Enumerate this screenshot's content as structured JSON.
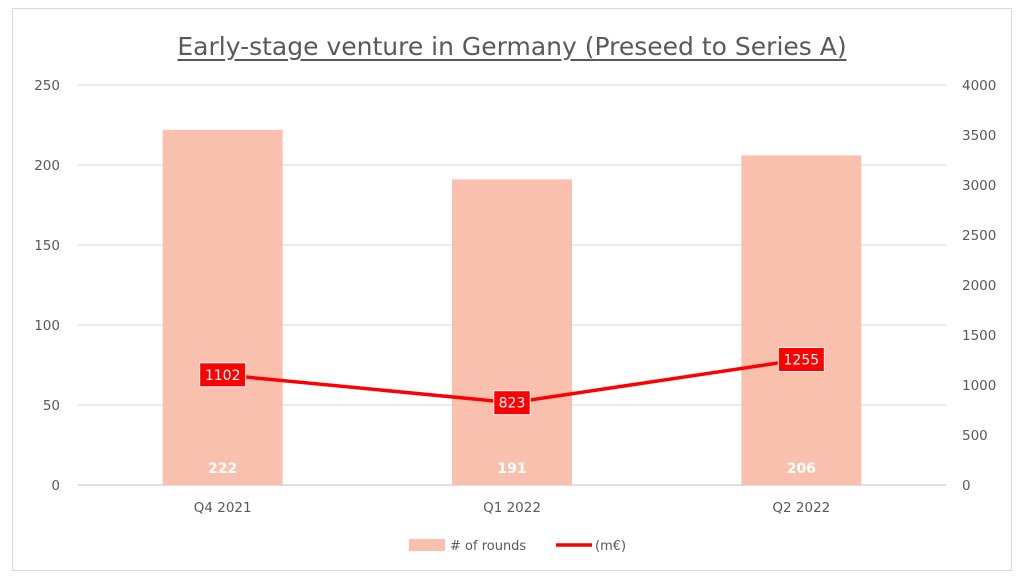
{
  "chart_data": {
    "type": "bar",
    "title": "Early-stage venture in Germany (Preseed to Series A)",
    "categories": [
      "Q4 2021",
      "Q1 2022",
      "Q2 2022"
    ],
    "series": [
      {
        "name": "# of rounds",
        "type": "bar",
        "axis": "left",
        "values": [
          222,
          191,
          206
        ],
        "color": "#f8c0ad",
        "data_labels": [
          "222",
          "191",
          "206"
        ]
      },
      {
        "name": "(m€)",
        "type": "line",
        "axis": "right",
        "values": [
          1102,
          823,
          1255
        ],
        "color": "#ff0000",
        "data_labels": [
          "1102",
          "823",
          "1255"
        ]
      }
    ],
    "y_left": {
      "min": 0,
      "max": 250,
      "ticks": [
        0,
        50,
        100,
        150,
        200,
        250
      ]
    },
    "y_right": {
      "min": 0,
      "max": 4000,
      "ticks": [
        0,
        500,
        1000,
        1500,
        2000,
        2500,
        3000,
        3500,
        4000
      ]
    },
    "grid": true,
    "legend": "bottom"
  }
}
